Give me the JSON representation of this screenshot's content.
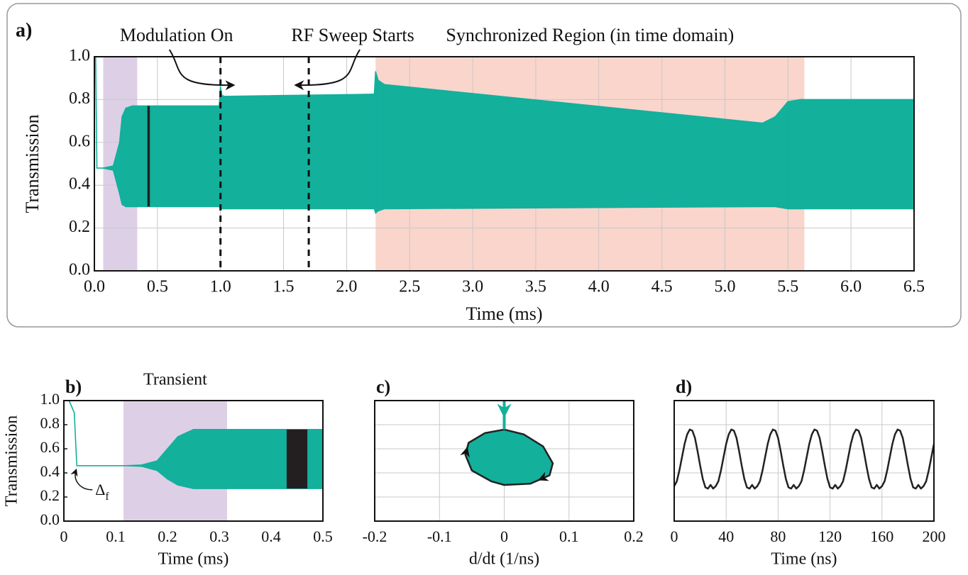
{
  "chart_data": [
    {
      "type": "envelope",
      "panel_label": "a)",
      "xlabel": "Time (ms)",
      "ylabel": "Transmission",
      "grid": true,
      "xlim": [
        0,
        6.5
      ],
      "ylim": [
        0,
        1
      ],
      "xticks": [
        {
          "value": 0,
          "label": "0.0"
        },
        0.5,
        {
          "value": 1,
          "label": "1.0"
        },
        1.5,
        {
          "value": 2,
          "label": "2.0"
        },
        2.5,
        {
          "value": 3,
          "label": "3.0"
        },
        3.5,
        {
          "value": 4,
          "label": "4.0"
        },
        4.5,
        {
          "value": 5,
          "label": "5.0"
        },
        5.5,
        {
          "value": 6,
          "label": "6.0"
        },
        6.5
      ],
      "yticks": [
        {
          "value": 0,
          "label": "0.0"
        },
        0.2,
        0.4,
        0.6,
        0.8,
        {
          "value": 1,
          "label": "1.0"
        }
      ],
      "x": [
        0,
        0.01,
        0.02,
        0.07,
        0.15,
        0.2,
        0.22,
        0.25,
        0.3,
        0.99,
        1.0,
        1.01,
        1.03,
        2.22,
        2.23,
        2.25,
        2.3,
        5.3,
        5.4,
        5.5,
        5.6,
        6.5
      ],
      "series": [
        {
          "color": "#13b09c",
          "values": [
            1.0,
            1.0,
            0.48,
            0.48,
            0.49,
            0.6,
            0.72,
            0.76,
            0.77,
            0.77,
            0.86,
            0.82,
            0.815,
            0.825,
            0.93,
            0.89,
            0.87,
            0.69,
            0.72,
            0.79,
            0.8,
            0.8
          ]
        },
        {
          "color": "#13b09c",
          "values": [
            1.0,
            1.0,
            0.48,
            0.48,
            0.47,
            0.36,
            0.31,
            0.3,
            0.3,
            0.3,
            0.29,
            0.29,
            0.29,
            0.29,
            0.27,
            0.28,
            0.29,
            0.3,
            0.3,
            0.29,
            0.29,
            0.29
          ]
        }
      ],
      "regions": [
        {
          "x0": 0.07,
          "x1": 0.34,
          "color": "#ddd0e6"
        },
        {
          "x0": 2.23,
          "x1": 5.63,
          "color": "#f9d5cc",
          "label": "Synchronized Region (in time domain)",
          "label_color": "#f0a994"
        }
      ],
      "vlines": [
        {
          "x": 1.0,
          "label": "Modulation On"
        },
        {
          "x": 1.7,
          "label": "RF Sweep Starts"
        }
      ],
      "zoom_window": {
        "x0": 0.42,
        "x1": 0.44,
        "y0": 0.3,
        "y1": 0.77,
        "color": "#222222"
      }
    },
    {
      "type": "envelope",
      "panel_label": "b)",
      "xlabel": "Time (ms)",
      "ylabel": "Transmission",
      "grid": false,
      "xlim": [
        0,
        0.5
      ],
      "ylim": [
        0,
        1
      ],
      "xticks": [
        0,
        0.1,
        0.2,
        0.3,
        0.4,
        0.5
      ],
      "yticks": [
        {
          "value": 0,
          "label": "0.0"
        },
        0.2,
        0.4,
        0.6,
        0.8,
        {
          "value": 1,
          "label": "1.0"
        }
      ],
      "x": [
        0,
        0.01,
        0.02,
        0.025,
        0.12,
        0.15,
        0.18,
        0.2,
        0.22,
        0.25,
        0.5
      ],
      "series": [
        {
          "color": "#13b09c",
          "values": [
            1.0,
            1.0,
            0.9,
            0.46,
            0.46,
            0.465,
            0.5,
            0.6,
            0.7,
            0.76,
            0.76
          ]
        },
        {
          "color": "#13b09c",
          "values": [
            1.0,
            1.0,
            0.9,
            0.46,
            0.46,
            0.455,
            0.42,
            0.35,
            0.3,
            0.27,
            0.27
          ]
        }
      ],
      "regions": [
        {
          "x0": 0.115,
          "x1": 0.315,
          "color": "#ddd0e6",
          "label": "Transient",
          "label_color": "#a57bb5"
        }
      ],
      "zoom_window": {
        "x0": 0.43,
        "x1": 0.47,
        "y0": 0.27,
        "y1": 0.76,
        "color": "#231f20"
      },
      "annotation": {
        "text": "Δ",
        "subscript": "f",
        "x": 0.025,
        "y": 0.46
      }
    },
    {
      "type": "phase",
      "panel_label": "c)",
      "xlabel": "d/dt (1/ns)",
      "grid": true,
      "ytick_labels": false,
      "xlim": [
        -0.2,
        0.2
      ],
      "ylim": [
        0,
        1
      ],
      "xticks": [
        -0.2,
        -0.1,
        0,
        0.1,
        0.2
      ],
      "yticks": [
        0,
        0.2,
        0.4,
        0.6,
        0.8,
        1
      ],
      "series": [
        {
          "color": "#222222",
          "fill": "#13b09c",
          "x": [
            0,
            -0.03,
            -0.055,
            -0.06,
            -0.05,
            -0.02,
            0,
            0.04,
            0.07,
            0.075,
            0.06,
            0.03,
            0
          ],
          "values": [
            0.76,
            0.73,
            0.65,
            0.55,
            0.42,
            0.33,
            0.3,
            0.31,
            0.38,
            0.48,
            0.62,
            0.72,
            0.76
          ]
        },
        {
          "color": "#13b09c",
          "x": [
            0,
            0
          ],
          "values": [
            1,
            0.76
          ]
        }
      ]
    },
    {
      "type": "line",
      "panel_label": "d)",
      "xlabel": "Time (ns)",
      "grid": true,
      "ytick_labels": false,
      "color": "#222222",
      "xlim": [
        0,
        200
      ],
      "ylim": [
        0,
        1
      ],
      "xticks": [
        0,
        40,
        80,
        120,
        160,
        200
      ],
      "yticks": [
        0,
        0.2,
        0.4,
        0.6,
        0.8,
        1
      ],
      "x": [
        0,
        2,
        4,
        6,
        8,
        10,
        12,
        14,
        16,
        18,
        20,
        22,
        24,
        26,
        28,
        30,
        32,
        34,
        36,
        38,
        40,
        42,
        44,
        46,
        48,
        50,
        52,
        54,
        56,
        58,
        60,
        62,
        64,
        66,
        68,
        70,
        72,
        74,
        76,
        78,
        80,
        82,
        84,
        86,
        88,
        90,
        92,
        94,
        96,
        98,
        100,
        102,
        104,
        106,
        108,
        110,
        112,
        114,
        116,
        118,
        120,
        122,
        124,
        126,
        128,
        130,
        132,
        134,
        136,
        138,
        140,
        142,
        144,
        146,
        148,
        150,
        152,
        154,
        156,
        158,
        160,
        162,
        164,
        166,
        168,
        170,
        172,
        174,
        176,
        178,
        180,
        182,
        184,
        186,
        188,
        190,
        192,
        194,
        196,
        198,
        200
      ],
      "values": [
        0.29,
        0.33,
        0.42,
        0.53,
        0.64,
        0.72,
        0.76,
        0.75,
        0.69,
        0.58,
        0.46,
        0.35,
        0.28,
        0.27,
        0.3,
        0.27,
        0.29,
        0.33,
        0.42,
        0.53,
        0.64,
        0.72,
        0.76,
        0.75,
        0.69,
        0.58,
        0.46,
        0.35,
        0.28,
        0.27,
        0.3,
        0.27,
        0.29,
        0.33,
        0.42,
        0.53,
        0.64,
        0.72,
        0.76,
        0.75,
        0.69,
        0.58,
        0.46,
        0.35,
        0.28,
        0.27,
        0.3,
        0.27,
        0.29,
        0.33,
        0.42,
        0.53,
        0.64,
        0.72,
        0.76,
        0.75,
        0.69,
        0.58,
        0.46,
        0.35,
        0.28,
        0.27,
        0.3,
        0.27,
        0.29,
        0.33,
        0.42,
        0.53,
        0.64,
        0.72,
        0.76,
        0.75,
        0.69,
        0.58,
        0.46,
        0.35,
        0.28,
        0.27,
        0.3,
        0.27,
        0.29,
        0.33,
        0.42,
        0.53,
        0.64,
        0.72,
        0.76,
        0.75,
        0.69,
        0.58,
        0.46,
        0.35,
        0.28,
        0.27,
        0.3,
        0.27,
        0.29,
        0.33,
        0.42,
        0.53,
        0.64
      ]
    }
  ]
}
